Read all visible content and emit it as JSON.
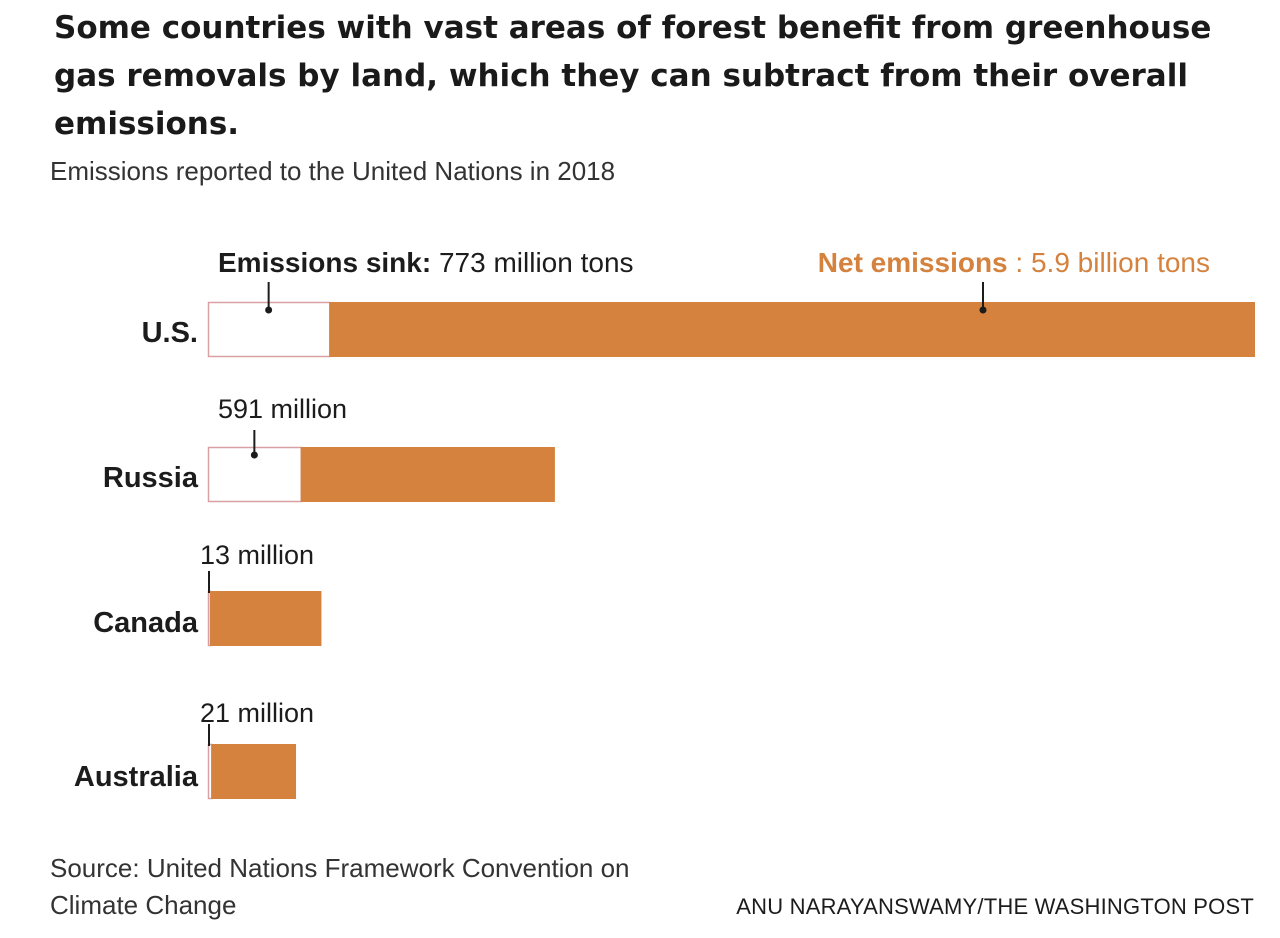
{
  "title": "Some countries with vast areas of forest benefit from greenhouse gas removals by land, which they can subtract from their overall emissions.",
  "subtitle": "Emissions reported to the United Nations in 2018",
  "source": "Source: United Nations Framework Convention on Climate Change",
  "credit": "ANU NARAYANSWAMY/THE WASHINGTON POST",
  "colors": {
    "net_emissions": "#D4823E",
    "net_label": "#D4823E",
    "sink_outline": "#D9A0A4",
    "text": "#1c1c1c"
  },
  "legend": {
    "sink_label": "Emissions sink:",
    "sink_value": "773 million tons",
    "net_label": "Net emissions",
    "net_value": ": 5.9 billion tons"
  },
  "chart_data": {
    "type": "bar",
    "orientation": "horizontal",
    "stacked": true,
    "units": "tons",
    "categories": [
      "U.S.",
      "Russia",
      "Canada",
      "Australia"
    ],
    "series": [
      {
        "name": "Emissions sink",
        "values": [
          773000000,
          591000000,
          13000000,
          21000000
        ]
      },
      {
        "name": "Net emissions",
        "values": [
          5900000000,
          1620000000,
          710000000,
          540000000
        ]
      }
    ],
    "sink_labels": [
      "773 million tons",
      "591 million",
      "13 million",
      "21 million"
    ]
  }
}
